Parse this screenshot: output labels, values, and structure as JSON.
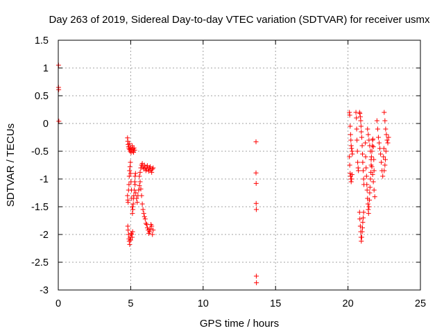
{
  "chart_data": {
    "type": "scatter",
    "title": "Day 263 of 2019, Sidereal Day-to-day VTEC variation (SDTVAR) for receiver usmx",
    "xlabel": "GPS time / hours",
    "ylabel": "SDTVAR / TECUs",
    "xlim": [
      0,
      25
    ],
    "ylim": [
      -3,
      1.5
    ],
    "xticks": [
      0,
      5,
      10,
      15,
      20,
      25
    ],
    "yticks": [
      -3,
      -2.5,
      -2,
      -1.5,
      -1,
      -0.5,
      0,
      0.5,
      1,
      1.5
    ],
    "xtick_labels": [
      "0",
      "5",
      "10",
      "15",
      "20",
      "25"
    ],
    "ytick_labels": [
      "-3",
      "-2.5",
      "-2",
      "-1.5",
      "-1",
      "-0.5",
      "0",
      "0.5",
      "1",
      "1.5"
    ],
    "grid": true,
    "marker": "+",
    "color": "#ff0000",
    "series": [
      {
        "name": "SDTVAR",
        "points": [
          [
            0.02,
            1.05
          ],
          [
            0.02,
            0.65
          ],
          [
            0.03,
            0.61
          ],
          [
            0.04,
            0.04
          ],
          [
            4.78,
            -0.26
          ],
          [
            4.8,
            -0.32
          ],
          [
            4.82,
            -0.38
          ],
          [
            4.85,
            -0.42
          ],
          [
            4.88,
            -0.45
          ],
          [
            4.9,
            -0.36
          ],
          [
            4.93,
            -0.47
          ],
          [
            4.96,
            -0.5
          ],
          [
            5.0,
            -0.44
          ],
          [
            5.03,
            -0.52
          ],
          [
            5.06,
            -0.47
          ],
          [
            5.1,
            -0.4
          ],
          [
            5.13,
            -0.5
          ],
          [
            5.16,
            -0.46
          ],
          [
            5.2,
            -0.52
          ],
          [
            5.23,
            -0.44
          ],
          [
            5.27,
            -0.48
          ],
          [
            4.78,
            -1.3
          ],
          [
            4.8,
            -1.38
          ],
          [
            4.82,
            -1.42
          ],
          [
            4.85,
            -1.2
          ],
          [
            4.88,
            -1.1
          ],
          [
            4.9,
            -0.95
          ],
          [
            4.92,
            -0.85
          ],
          [
            4.95,
            -0.78
          ],
          [
            4.98,
            -0.7
          ],
          [
            5.0,
            -0.9
          ],
          [
            5.02,
            -1.05
          ],
          [
            5.05,
            -1.2
          ],
          [
            5.07,
            -1.35
          ],
          [
            5.1,
            -1.5
          ],
          [
            5.12,
            -1.62
          ],
          [
            5.15,
            -1.55
          ],
          [
            5.18,
            -1.45
          ],
          [
            5.2,
            -1.35
          ],
          [
            5.22,
            -1.3
          ],
          [
            5.25,
            -1.2
          ],
          [
            5.28,
            -1.05
          ],
          [
            5.3,
            -0.95
          ],
          [
            5.33,
            -0.9
          ],
          [
            4.8,
            -1.85
          ],
          [
            4.82,
            -1.92
          ],
          [
            4.85,
            -2.0
          ],
          [
            4.88,
            -2.08
          ],
          [
            4.9,
            -2.12
          ],
          [
            4.93,
            -2.18
          ],
          [
            4.96,
            -2.05
          ],
          [
            5.0,
            -2.1
          ],
          [
            5.03,
            -1.98
          ],
          [
            5.06,
            -2.0
          ],
          [
            5.1,
            -2.05
          ],
          [
            5.13,
            -1.95
          ],
          [
            5.3,
            -1.1
          ],
          [
            5.35,
            -1.25
          ],
          [
            5.4,
            -1.35
          ],
          [
            5.45,
            -1.42
          ],
          [
            5.5,
            -1.3
          ],
          [
            5.55,
            -1.2
          ],
          [
            5.6,
            -1.12
          ],
          [
            5.65,
            -1.05
          ],
          [
            5.7,
            -1.18
          ],
          [
            5.75,
            -1.3
          ],
          [
            5.8,
            -1.45
          ],
          [
            5.85,
            -1.55
          ],
          [
            5.9,
            -1.62
          ],
          [
            5.95,
            -1.68
          ],
          [
            6.0,
            -1.72
          ],
          [
            6.05,
            -1.8
          ],
          [
            6.1,
            -1.82
          ],
          [
            6.15,
            -1.88
          ],
          [
            6.2,
            -1.92
          ],
          [
            6.25,
            -1.98
          ],
          [
            6.3,
            -1.95
          ],
          [
            6.35,
            -1.9
          ],
          [
            6.4,
            -1.82
          ],
          [
            6.45,
            -1.85
          ],
          [
            6.5,
            -2.0
          ],
          [
            6.55,
            -1.92
          ],
          [
            5.6,
            -0.95
          ],
          [
            5.65,
            -0.88
          ],
          [
            5.7,
            -0.8
          ],
          [
            5.75,
            -0.75
          ],
          [
            5.8,
            -0.72
          ],
          [
            5.85,
            -0.78
          ],
          [
            5.9,
            -0.82
          ],
          [
            5.95,
            -0.75
          ],
          [
            6.0,
            -0.8
          ],
          [
            6.05,
            -0.85
          ],
          [
            6.1,
            -0.8
          ],
          [
            6.15,
            -0.76
          ],
          [
            6.2,
            -0.82
          ],
          [
            6.25,
            -0.86
          ],
          [
            6.3,
            -0.8
          ],
          [
            6.35,
            -0.78
          ],
          [
            6.4,
            -0.84
          ],
          [
            6.45,
            -0.88
          ],
          [
            6.5,
            -0.82
          ],
          [
            6.55,
            -0.8
          ],
          [
            13.65,
            -0.33
          ],
          [
            13.65,
            -0.89
          ],
          [
            13.66,
            -1.08
          ],
          [
            13.66,
            -1.44
          ],
          [
            13.67,
            -1.55
          ],
          [
            13.67,
            -2.75
          ],
          [
            13.68,
            -2.87
          ],
          [
            20.1,
            0.2
          ],
          [
            20.12,
            0.15
          ],
          [
            20.15,
            -0.05
          ],
          [
            20.18,
            -0.2
          ],
          [
            20.2,
            -0.3
          ],
          [
            20.22,
            -0.4
          ],
          [
            20.25,
            -0.45
          ],
          [
            20.28,
            -0.5
          ],
          [
            20.3,
            -0.55
          ],
          [
            20.1,
            -0.6
          ],
          [
            20.12,
            -0.75
          ],
          [
            20.15,
            -0.9
          ],
          [
            20.18,
            -0.95
          ],
          [
            20.2,
            -1.0
          ],
          [
            20.22,
            -1.05
          ],
          [
            20.25,
            -1.0
          ],
          [
            20.28,
            -0.92
          ],
          [
            20.55,
            0.2
          ],
          [
            20.58,
            0.1
          ],
          [
            20.6,
            -0.1
          ],
          [
            20.62,
            -0.3
          ],
          [
            20.65,
            -0.5
          ],
          [
            20.67,
            -0.7
          ],
          [
            20.7,
            -0.8
          ],
          [
            20.72,
            -0.85
          ],
          [
            20.8,
            0.2
          ],
          [
            20.82,
            0.18
          ],
          [
            20.85,
            0.12
          ],
          [
            20.88,
            0.05
          ],
          [
            20.9,
            -0.05
          ],
          [
            20.92,
            -0.15
          ],
          [
            20.95,
            -0.25
          ],
          [
            20.98,
            -0.4
          ],
          [
            21.0,
            -0.55
          ],
          [
            21.02,
            -0.7
          ],
          [
            21.05,
            -0.85
          ],
          [
            21.08,
            -1.0
          ],
          [
            21.1,
            -1.1
          ],
          [
            20.8,
            -1.6
          ],
          [
            20.82,
            -1.72
          ],
          [
            20.85,
            -1.85
          ],
          [
            20.88,
            -1.95
          ],
          [
            20.9,
            -2.05
          ],
          [
            20.92,
            -2.12
          ],
          [
            20.95,
            -2.05
          ],
          [
            20.98,
            -1.95
          ],
          [
            21.0,
            -1.88
          ],
          [
            21.02,
            -1.78
          ],
          [
            21.05,
            -1.7
          ],
          [
            21.08,
            -1.6
          ],
          [
            21.2,
            -0.35
          ],
          [
            21.22,
            -0.6
          ],
          [
            21.25,
            -0.8
          ],
          [
            21.28,
            -0.95
          ],
          [
            21.3,
            -1.1
          ],
          [
            21.32,
            -1.2
          ],
          [
            21.35,
            -1.35
          ],
          [
            21.38,
            -1.45
          ],
          [
            21.4,
            -1.55
          ],
          [
            21.42,
            -1.62
          ],
          [
            21.45,
            -1.5
          ],
          [
            21.48,
            -1.38
          ],
          [
            21.5,
            -1.25
          ],
          [
            21.52,
            -1.15
          ],
          [
            21.55,
            -1.0
          ],
          [
            21.58,
            -0.88
          ],
          [
            21.6,
            -0.75
          ],
          [
            21.62,
            -0.6
          ],
          [
            21.65,
            -0.5
          ],
          [
            21.68,
            -0.4
          ],
          [
            21.7,
            -0.3
          ],
          [
            21.72,
            -0.28
          ],
          [
            21.75,
            -0.42
          ],
          [
            21.78,
            -0.65
          ],
          [
            21.8,
            -0.85
          ],
          [
            21.35,
            -0.1
          ],
          [
            21.4,
            -0.2
          ],
          [
            21.45,
            -0.3
          ],
          [
            21.5,
            -0.4
          ],
          [
            21.55,
            -0.5
          ],
          [
            21.6,
            -0.65
          ],
          [
            21.65,
            -0.78
          ],
          [
            21.7,
            -0.92
          ],
          [
            21.75,
            -1.05
          ],
          [
            21.8,
            -1.2
          ],
          [
            21.85,
            -1.32
          ],
          [
            22.0,
            0.05
          ],
          [
            22.05,
            -0.1
          ],
          [
            22.1,
            -0.25
          ],
          [
            22.15,
            -0.35
          ],
          [
            22.2,
            -0.45
          ],
          [
            22.25,
            -0.55
          ],
          [
            22.3,
            -0.7
          ],
          [
            22.35,
            -0.85
          ],
          [
            22.4,
            -0.95
          ],
          [
            22.5,
            0.2
          ],
          [
            22.55,
            0.05
          ],
          [
            22.6,
            -0.1
          ],
          [
            22.65,
            -0.2
          ],
          [
            22.7,
            -0.3
          ],
          [
            22.75,
            -0.35
          ],
          [
            22.8,
            -0.25
          ],
          [
            22.62,
            -0.5
          ],
          [
            22.58,
            -0.65
          ],
          [
            22.55,
            -0.75
          ],
          [
            22.5,
            -0.85
          ],
          [
            22.45,
            -0.6
          ],
          [
            22.48,
            -0.45
          ]
        ]
      }
    ]
  }
}
